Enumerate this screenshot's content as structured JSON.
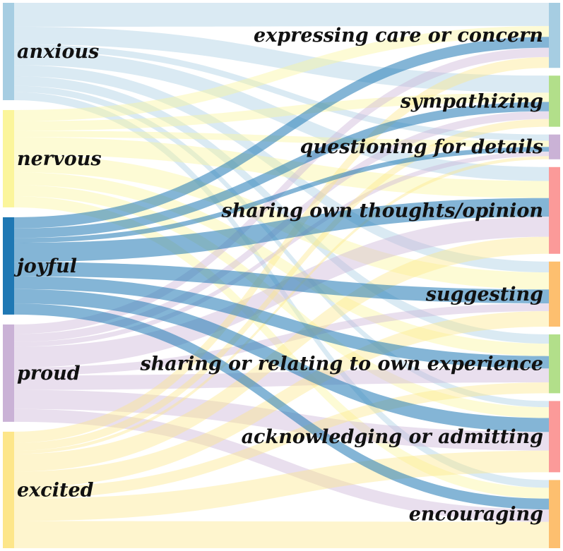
{
  "sources": [
    {
      "id": "anxious",
      "label": "anxious",
      "color": "#a6cde2"
    },
    {
      "id": "nervous",
      "label": "nervous",
      "color": "#fbf59b"
    },
    {
      "id": "joyful",
      "label": "joyful",
      "color": "#1f78b4"
    },
    {
      "id": "proud",
      "label": "proud",
      "color": "#cab2d6"
    },
    {
      "id": "excited",
      "label": "excited",
      "color": "#fde68a"
    }
  ],
  "targets": [
    {
      "id": "care",
      "label": "expressing care or concern",
      "color": "#a6cde2"
    },
    {
      "id": "sympathy",
      "label": "sympathizing",
      "color": "#b2df8a"
    },
    {
      "id": "questioning",
      "label": "questioning for details",
      "color": "#cab2d6"
    },
    {
      "id": "opinion",
      "label": "sharing own thoughts/opinion",
      "color": "#fb9a99"
    },
    {
      "id": "suggesting",
      "label": "suggesting",
      "color": "#fdbf6f"
    },
    {
      "id": "experience",
      "label": "sharing or relating to own experience",
      "color": "#b2df8a"
    },
    {
      "id": "admitting",
      "label": "acknowledging or admitting",
      "color": "#fb9a99"
    },
    {
      "id": "encouraging",
      "label": "encouraging",
      "color": "#fdbf6f"
    }
  ],
  "links": [
    {
      "source": "anxious",
      "target": "care",
      "value": 30
    },
    {
      "source": "anxious",
      "target": "sympathy",
      "value": 22
    },
    {
      "source": "anxious",
      "target": "questioning",
      "value": 8
    },
    {
      "source": "anxious",
      "target": "opinion",
      "value": 18
    },
    {
      "source": "anxious",
      "target": "suggesting",
      "value": 14
    },
    {
      "source": "anxious",
      "target": "experience",
      "value": 12
    },
    {
      "source": "anxious",
      "target": "admitting",
      "value": 8
    },
    {
      "source": "anxious",
      "target": "encouraging",
      "value": 10
    },
    {
      "source": "nervous",
      "target": "care",
      "value": 14
    },
    {
      "source": "nervous",
      "target": "sympathy",
      "value": 12
    },
    {
      "source": "nervous",
      "target": "questioning",
      "value": 8
    },
    {
      "source": "nervous",
      "target": "opinion",
      "value": 22
    },
    {
      "source": "nervous",
      "target": "suggesting",
      "value": 22
    },
    {
      "source": "nervous",
      "target": "experience",
      "value": 16
    },
    {
      "source": "nervous",
      "target": "admitting",
      "value": 14
    },
    {
      "source": "nervous",
      "target": "encouraging",
      "value": 14
    },
    {
      "source": "joyful",
      "target": "care",
      "value": 14
    },
    {
      "source": "joyful",
      "target": "sympathy",
      "value": 12
    },
    {
      "source": "joyful",
      "target": "questioning",
      "value": 6
    },
    {
      "source": "joyful",
      "target": "opinion",
      "value": 24
    },
    {
      "source": "joyful",
      "target": "suggesting",
      "value": 18
    },
    {
      "source": "joyful",
      "target": "experience",
      "value": 16
    },
    {
      "source": "joyful",
      "target": "admitting",
      "value": 18
    },
    {
      "source": "joyful",
      "target": "encouraging",
      "value": 14
    },
    {
      "source": "proud",
      "target": "care",
      "value": 12
    },
    {
      "source": "proud",
      "target": "sympathy",
      "value": 10
    },
    {
      "source": "proud",
      "target": "questioning",
      "value": 6
    },
    {
      "source": "proud",
      "target": "opinion",
      "value": 26
    },
    {
      "source": "proud",
      "target": "suggesting",
      "value": 10
    },
    {
      "source": "proud",
      "target": "experience",
      "value": 18
    },
    {
      "source": "proud",
      "target": "admitting",
      "value": 24
    },
    {
      "source": "proud",
      "target": "encouraging",
      "value": 16
    },
    {
      "source": "excited",
      "target": "care",
      "value": 14
    },
    {
      "source": "excited",
      "target": "sympathy",
      "value": 10
    },
    {
      "source": "excited",
      "target": "questioning",
      "value": 4
    },
    {
      "source": "excited",
      "target": "opinion",
      "value": 22
    },
    {
      "source": "excited",
      "target": "suggesting",
      "value": 20
    },
    {
      "source": "excited",
      "target": "experience",
      "value": 14
    },
    {
      "source": "excited",
      "target": "admitting",
      "value": 28
    },
    {
      "source": "excited",
      "target": "encouraging",
      "value": 34
    }
  ]
}
